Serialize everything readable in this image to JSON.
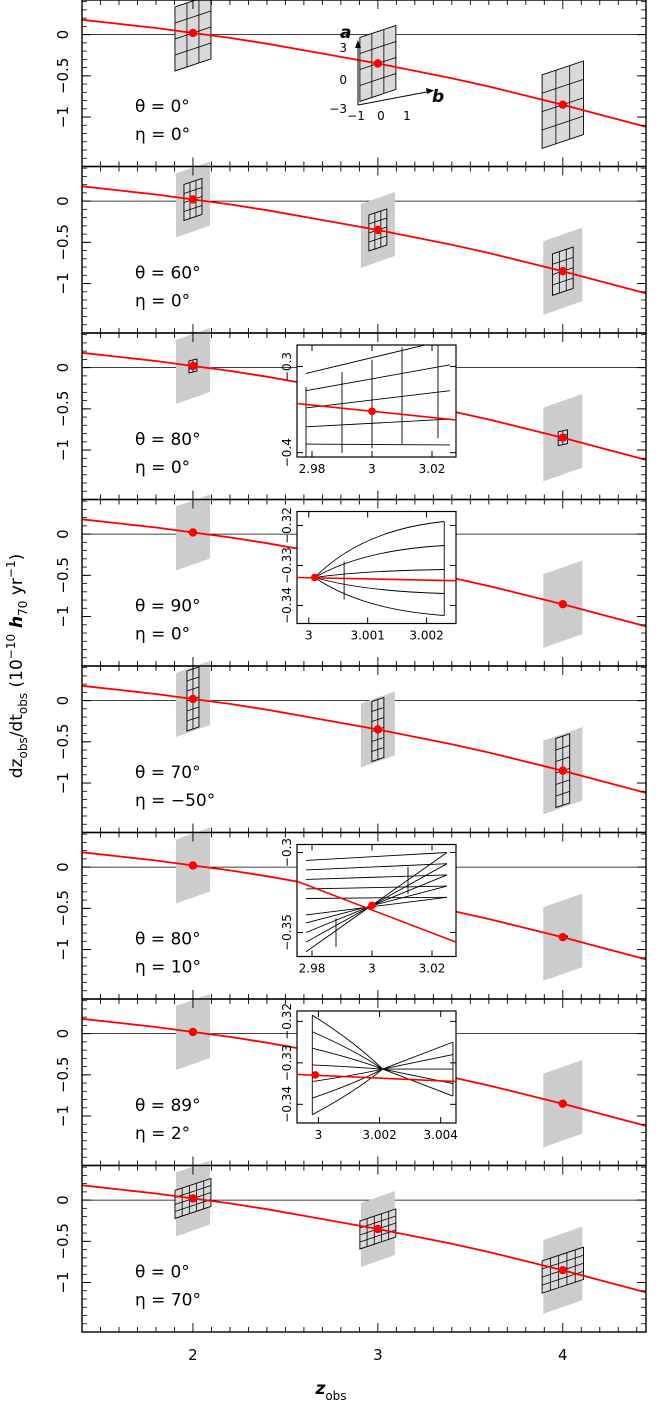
{
  "chart_data": {
    "type": "line",
    "xlabel": "z",
    "xlabel_sub": "obs",
    "ylabel_parts": [
      "dz",
      "obs",
      "/dt",
      "obs",
      "   (10",
      "−10",
      " h",
      "70",
      " yr",
      "−1",
      ")"
    ],
    "xlim": [
      1.4,
      4.45
    ],
    "ylim": [
      -1.6,
      0.42
    ],
    "x_ticks": [
      2,
      3,
      4
    ],
    "x_tick_labels": [
      "2",
      "3",
      "4"
    ],
    "y_ticks": [
      0,
      -0.5,
      -1
    ],
    "y_tick_labels": [
      "0",
      "−0.5",
      "−1"
    ],
    "main_curve": {
      "x": [
        1.4,
        1.6,
        1.8,
        2.0,
        2.2,
        2.4,
        2.6,
        2.8,
        3.0,
        3.2,
        3.4,
        3.6,
        3.8,
        4.0,
        4.2,
        4.45
      ],
      "y": [
        0.18,
        0.13,
        0.08,
        0.02,
        -0.04,
        -0.11,
        -0.19,
        -0.27,
        -0.35,
        -0.44,
        -0.53,
        -0.63,
        -0.74,
        -0.85,
        -0.97,
        -1.12
      ]
    },
    "points": {
      "x": [
        2,
        3,
        4
      ],
      "y": [
        0.02,
        -0.35,
        -0.85
      ]
    },
    "panels": [
      {
        "theta": "θ = 0°",
        "eta": "η = 0°",
        "grid": "full"
      },
      {
        "theta": "θ = 60°",
        "eta": "η = 0°",
        "grid": "half"
      },
      {
        "theta": "θ = 80°",
        "eta": "η = 0°",
        "grid": "tiny",
        "inset": {
          "xlim": [
            2.975,
            3.028
          ],
          "ylim": [
            -0.405,
            -0.275
          ],
          "x_ticks": [
            2.98,
            3,
            3.02
          ],
          "x_tick_labels": [
            "2.98",
            "3",
            "3.02"
          ],
          "y_ticks": [
            -0.3,
            -0.4
          ],
          "y_tick_labels": [
            "−0.3",
            "−0.4"
          ]
        }
      },
      {
        "theta": "θ = 90°",
        "eta": "η = 0°",
        "grid": "none",
        "inset": {
          "xlim": [
            2.9998,
            3.0025
          ],
          "ylim": [
            -0.3445,
            -0.3165
          ],
          "x_ticks": [
            3,
            3.001,
            3.002
          ],
          "x_tick_labels": [
            "3",
            "3.001",
            "3.002"
          ],
          "y_ticks": [
            -0.32,
            -0.33,
            -0.34
          ],
          "y_tick_labels": [
            "−0.32",
            "−0.33",
            "−0.34"
          ]
        }
      },
      {
        "theta": "θ = 70°",
        "eta": "η = −50°",
        "grid": "narrow"
      },
      {
        "theta": "θ = 80°",
        "eta": "η = 10°",
        "grid": "none",
        "inset": {
          "xlim": [
            2.975,
            3.028
          ],
          "ylim": [
            -0.365,
            -0.295
          ],
          "x_ticks": [
            2.98,
            3,
            3.02
          ],
          "x_tick_labels": [
            "2.98",
            "3",
            "3.02"
          ],
          "y_ticks": [
            -0.3,
            -0.35
          ],
          "y_tick_labels": [
            "−0.3",
            "−0.35"
          ]
        }
      },
      {
        "theta": "θ = 89°",
        "eta": "η = 2°",
        "grid": "none",
        "inset": {
          "xlim": [
            2.9993,
            3.0045
          ],
          "ylim": [
            -0.3445,
            -0.3175
          ],
          "x_ticks": [
            3,
            3.002,
            3.004
          ],
          "x_tick_labels": [
            "3",
            "3.002",
            "3.004"
          ],
          "y_ticks": [
            -0.32,
            -0.33,
            -0.34
          ],
          "y_tick_labels": [
            "−0.32",
            "−0.33",
            "−0.34"
          ]
        }
      },
      {
        "theta": "θ = 0°",
        "eta": "η = 70°",
        "grid": "flat"
      }
    ],
    "panel1_key": {
      "a_label": "a",
      "b_label": "b",
      "a_ticks": [
        "3",
        "0",
        "−3"
      ],
      "b_ticks": [
        "−1",
        "0",
        "1"
      ]
    },
    "colors": {
      "curve": "#ff0000",
      "point": "#ff0000",
      "shade": "#cccccc",
      "grid_fill": "#d9d9d9"
    }
  }
}
